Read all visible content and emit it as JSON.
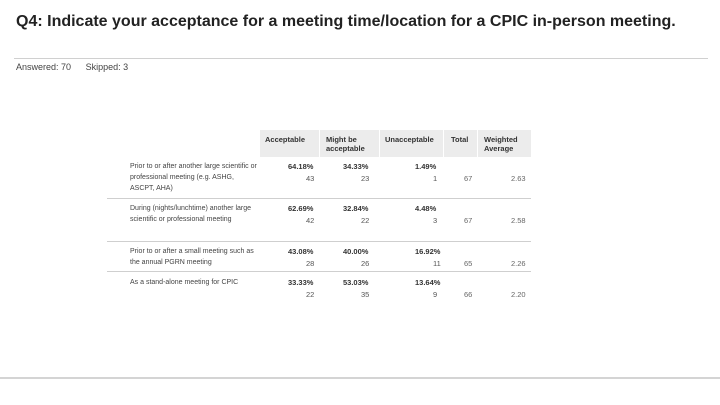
{
  "question": {
    "title": "Q4: Indicate your acceptance for a meeting time/location for a CPIC in-person meeting.",
    "answered_label": "Answered: 70",
    "skipped_label": "Skipped: 3"
  },
  "chart_data": {
    "type": "table",
    "columns": [
      "",
      "Acceptable",
      "Might be acceptable",
      "Unacceptable",
      "Total",
      "Weighted Average"
    ],
    "rows": [
      {
        "label": "Prior to or after another large scientific or professional meeting (e.g. ASHG, ASCPT, AHA)",
        "cells": [
          {
            "pct": "64.18%",
            "count": "43"
          },
          {
            "pct": "34.33%",
            "count": "23"
          },
          {
            "pct": "1.49%",
            "count": "1"
          }
        ],
        "total": "67",
        "weighted_average": "2.63"
      },
      {
        "label": "During (nights/lunchtime) another large scientific or professional meeting",
        "cells": [
          {
            "pct": "62.69%",
            "count": "42"
          },
          {
            "pct": "32.84%",
            "count": "22"
          },
          {
            "pct": "4.48%",
            "count": "3"
          }
        ],
        "total": "67",
        "weighted_average": "2.58"
      },
      {
        "label": "Prior to or after a small meeting such as the annual PGRN meeting",
        "cells": [
          {
            "pct": "43.08%",
            "count": "28"
          },
          {
            "pct": "40.00%",
            "count": "26"
          },
          {
            "pct": "16.92%",
            "count": "11"
          }
        ],
        "total": "65",
        "weighted_average": "2.26"
      },
      {
        "label": "As a stand-alone meeting for CPIC",
        "cells": [
          {
            "pct": "33.33%",
            "count": "22"
          },
          {
            "pct": "53.03%",
            "count": "35"
          },
          {
            "pct": "13.64%",
            "count": "9"
          }
        ],
        "total": "66",
        "weighted_average": "2.20"
      }
    ]
  }
}
